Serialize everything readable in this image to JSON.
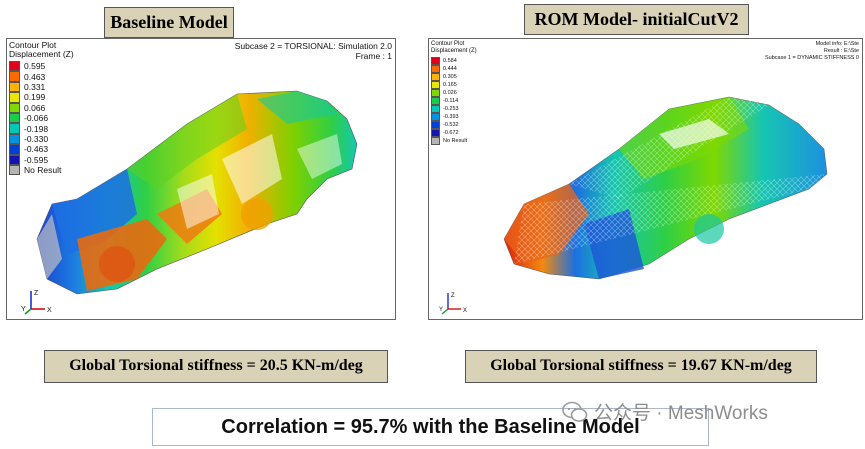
{
  "baseline": {
    "title": "Baseline Model",
    "header_left": [
      "Contour Plot",
      "Displacement (Z)"
    ],
    "header_right": [
      "Subcase 2 = TORSIONAL: Simulation 2.0",
      "Frame : 1"
    ],
    "legend": [
      "0.595",
      "0.463",
      "0.331",
      "0.199",
      "0.066",
      "-0.066",
      "-0.198",
      "-0.330",
      "-0.463",
      "-0.595"
    ],
    "no_result": "No Result",
    "stiffness": "Global Torsional stiffness = 20.5 KN-m/deg"
  },
  "rom": {
    "title": "ROM Model- initialCutV2",
    "header_left": [
      "Contour Plot",
      "Displacement (Z)"
    ],
    "header_right": [
      "Model info: E:\\Ste",
      "Result : E:\\Ste",
      "Subcase 1 = DYNAMIC STIFFNESS 0"
    ],
    "legend": [
      "0.584",
      "0.444",
      "0.305",
      "0.165",
      "0.026",
      "-0.114",
      "-0.253",
      "-0.393",
      "-0.532",
      "-0.672"
    ],
    "no_result": "No Result",
    "stiffness": "Global Torsional stiffness = 19.67 KN-m/deg"
  },
  "legend_colors": [
    "#e0001a",
    "#ff6a00",
    "#ffb300",
    "#e9e600",
    "#7fd800",
    "#19cc4a",
    "#00c8b4",
    "#0094e0",
    "#0040d8",
    "#1414b0"
  ],
  "axes": {
    "z": "Z",
    "y": "Y",
    "x": "X"
  },
  "correlation": "Correlation = 95.7% with the Baseline Model",
  "watermark": "公众号 · MeshWorks"
}
